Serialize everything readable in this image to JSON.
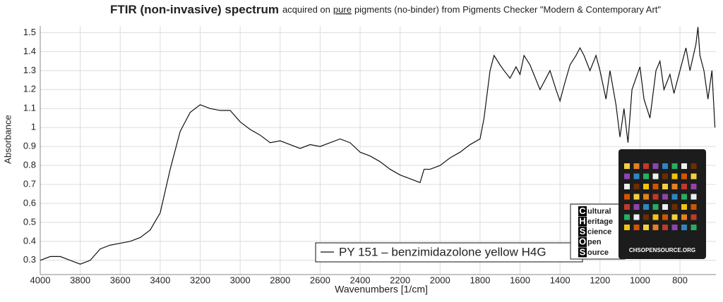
{
  "chart_data": {
    "type": "line",
    "title": "FTIR (non-invasive) spectrum",
    "subtitle_parts": [
      "acquired on",
      "pure",
      "pigments (no-binder) from Pigments Checker \"Modern & Contemporary Art\""
    ],
    "x_label": "Wavenumbers [1/cm]",
    "y_label": "Absorbance",
    "x": [
      4000,
      3950,
      3900,
      3850,
      3800,
      3750,
      3700,
      3650,
      3600,
      3550,
      3500,
      3450,
      3400,
      3350,
      3300,
      3250,
      3200,
      3150,
      3100,
      3050,
      3000,
      2950,
      2900,
      2850,
      2800,
      2750,
      2700,
      2650,
      2600,
      2550,
      2500,
      2450,
      2400,
      2350,
      2300,
      2250,
      2200,
      2150,
      2100,
      2080,
      2050,
      2000,
      1950,
      1900,
      1850,
      1800,
      1780,
      1750,
      1730,
      1700,
      1680,
      1650,
      1620,
      1600,
      1580,
      1550,
      1500,
      1450,
      1420,
      1400,
      1380,
      1350,
      1320,
      1300,
      1280,
      1250,
      1220,
      1200,
      1170,
      1150,
      1120,
      1100,
      1080,
      1060,
      1040,
      1000,
      980,
      950,
      920,
      900,
      880,
      850,
      830,
      800,
      770,
      750,
      720,
      710,
      700,
      680,
      660,
      640,
      625
    ],
    "series": [
      {
        "name": "PY 151 – benzimidazolone yellow H4G",
        "color": "#111111",
        "values": [
          0.3,
          0.32,
          0.32,
          0.3,
          0.28,
          0.3,
          0.36,
          0.38,
          0.39,
          0.4,
          0.42,
          0.46,
          0.55,
          0.78,
          0.98,
          1.08,
          1.12,
          1.1,
          1.09,
          1.09,
          1.03,
          0.99,
          0.96,
          0.92,
          0.93,
          0.91,
          0.89,
          0.91,
          0.9,
          0.92,
          0.94,
          0.92,
          0.87,
          0.85,
          0.82,
          0.78,
          0.75,
          0.73,
          0.71,
          0.78,
          0.78,
          0.8,
          0.84,
          0.87,
          0.91,
          0.94,
          1.05,
          1.3,
          1.38,
          1.33,
          1.3,
          1.26,
          1.32,
          1.28,
          1.38,
          1.33,
          1.2,
          1.3,
          1.2,
          1.14,
          1.22,
          1.33,
          1.38,
          1.42,
          1.38,
          1.3,
          1.38,
          1.3,
          1.15,
          1.3,
          1.12,
          0.95,
          1.1,
          0.92,
          1.2,
          1.32,
          1.15,
          1.05,
          1.3,
          1.35,
          1.2,
          1.28,
          1.18,
          1.3,
          1.42,
          1.3,
          1.44,
          1.53,
          1.38,
          1.3,
          1.15,
          1.3,
          1.0
        ]
      }
    ],
    "xlim": [
      4000,
      620
    ],
    "xticks": [
      4000,
      3800,
      3600,
      3400,
      3200,
      3000,
      2800,
      2600,
      2400,
      2200,
      2000,
      1800,
      1600,
      1400,
      1200,
      1000,
      800
    ],
    "ylim": [
      0.225,
      1.535
    ],
    "yticks": [
      0.3,
      0.4,
      0.5,
      0.6,
      0.7,
      0.8,
      0.9,
      1,
      1.1,
      1.2,
      1.3,
      1.4,
      1.5
    ],
    "grid": true,
    "logo": {
      "letters": [
        "C",
        "H",
        "S",
        "O",
        "S"
      ],
      "words": [
        "ultural",
        "eritage",
        "cience",
        "pen",
        "ource"
      ]
    },
    "card_caption": "CHSOPENSOURCE.ORG"
  }
}
